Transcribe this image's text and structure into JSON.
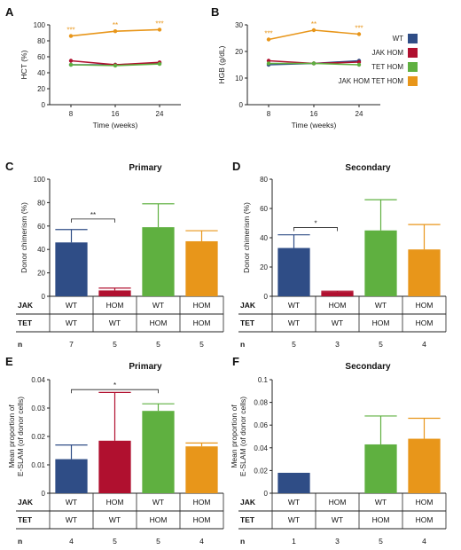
{
  "colors": {
    "wt": "#2f4d86",
    "jak_hom": "#b0102f",
    "tet_hom": "#5fb040",
    "jak_tet_hom": "#e8961a",
    "axis": "#222222"
  },
  "legend": {
    "items": [
      {
        "label": "WT",
        "color_key": "wt"
      },
      {
        "label": "JAK HOM",
        "color_key": "jak_hom"
      },
      {
        "label": "TET HOM",
        "color_key": "tet_hom"
      },
      {
        "label": "JAK HOM TET HOM",
        "color_key": "jak_tet_hom"
      }
    ]
  },
  "chart_data": [
    {
      "panel": "A",
      "type": "line",
      "title": "",
      "xlabel": "Time (weeks)",
      "ylabel": "HCT (%)",
      "x": [
        8,
        16,
        24
      ],
      "xticks": [
        "8",
        "16",
        "24"
      ],
      "ylim": [
        0,
        100
      ],
      "yticks": [
        0,
        20,
        40,
        60,
        80,
        100
      ],
      "series": [
        {
          "name": "WT",
          "color_key": "wt",
          "values": [
            50,
            50,
            52
          ]
        },
        {
          "name": "JAK HOM",
          "color_key": "jak_hom",
          "values": [
            55,
            50,
            53
          ]
        },
        {
          "name": "TET HOM",
          "color_key": "tet_hom",
          "values": [
            50,
            49,
            51
          ]
        },
        {
          "name": "JAK HOM TET HOM",
          "color_key": "jak_tet_hom",
          "values": [
            86,
            92,
            94
          ]
        }
      ],
      "annotations": [
        {
          "x": 8,
          "y": 86,
          "text": "***"
        },
        {
          "x": 16,
          "y": 92,
          "text": "**"
        },
        {
          "x": 24,
          "y": 94,
          "text": "***"
        }
      ]
    },
    {
      "panel": "B",
      "type": "line",
      "title": "",
      "xlabel": "Time (weeks)",
      "ylabel": "HGB (g/dL)",
      "x": [
        8,
        16,
        24
      ],
      "xticks": [
        "8",
        "16",
        "24"
      ],
      "ylim": [
        0,
        30
      ],
      "yticks": [
        0,
        10,
        20,
        30
      ],
      "series": [
        {
          "name": "WT",
          "color_key": "wt",
          "values": [
            15,
            15.5,
            16.5
          ]
        },
        {
          "name": "JAK HOM",
          "color_key": "jak_hom",
          "values": [
            16.5,
            15.5,
            16
          ]
        },
        {
          "name": "TET HOM",
          "color_key": "tet_hom",
          "values": [
            15.5,
            15.5,
            15
          ]
        },
        {
          "name": "JAK HOM TET HOM",
          "color_key": "jak_tet_hom",
          "values": [
            24.5,
            28,
            26.5
          ]
        }
      ],
      "annotations": [
        {
          "x": 8,
          "y": 24.5,
          "text": "***"
        },
        {
          "x": 16,
          "y": 28,
          "text": "**"
        },
        {
          "x": 24,
          "y": 26.5,
          "text": "***"
        }
      ]
    },
    {
      "panel": "C",
      "type": "bar",
      "title": "Primary",
      "xlabel": "",
      "ylabel": "Donor chimerism (%)",
      "ylim": [
        0,
        100
      ],
      "yticks": [
        0,
        20,
        40,
        60,
        80,
        100
      ],
      "bars": [
        {
          "color_key": "wt",
          "value": 46,
          "err": 11
        },
        {
          "color_key": "jak_hom",
          "value": 5,
          "err": 2
        },
        {
          "color_key": "tet_hom",
          "value": 59,
          "err": 20
        },
        {
          "color_key": "jak_tet_hom",
          "value": 47,
          "err": 9
        }
      ],
      "bracket": {
        "from": 0,
        "to": 1,
        "y": 66,
        "text": "**"
      },
      "table": {
        "jak": [
          "WT",
          "HOM",
          "WT",
          "HOM"
        ],
        "tet": [
          "WT",
          "WT",
          "HOM",
          "HOM"
        ],
        "n": [
          "7",
          "5",
          "5",
          "5"
        ]
      }
    },
    {
      "panel": "D",
      "type": "bar",
      "title": "Secondary",
      "xlabel": "",
      "ylabel": "Donor chimerism (%)",
      "ylim": [
        0,
        80
      ],
      "yticks": [
        0,
        20,
        40,
        60,
        80
      ],
      "bars": [
        {
          "color_key": "wt",
          "value": 33,
          "err": 9
        },
        {
          "color_key": "jak_hom",
          "value": 3,
          "err": 0.5
        },
        {
          "color_key": "tet_hom",
          "value": 45,
          "err": 21
        },
        {
          "color_key": "jak_tet_hom",
          "value": 32,
          "err": 17
        }
      ],
      "bracket": {
        "from": 0,
        "to": 1,
        "y": 47,
        "text": "*"
      },
      "table": {
        "jak": [
          "WT",
          "HOM",
          "WT",
          "HOM"
        ],
        "tet": [
          "WT",
          "WT",
          "HOM",
          "HOM"
        ],
        "n": [
          "5",
          "3",
          "5",
          "4"
        ]
      }
    },
    {
      "panel": "E",
      "type": "bar",
      "title": "Primary",
      "xlabel": "",
      "ylabel": "Mean proportion of E-SLAM (of donor cells)",
      "ylim": [
        0,
        0.04
      ],
      "yticks": [
        0,
        0.01,
        0.02,
        0.03,
        0.04
      ],
      "bars": [
        {
          "color_key": "wt",
          "value": 0.012,
          "err": 0.005
        },
        {
          "color_key": "jak_hom",
          "value": 0.0185,
          "err": 0.017
        },
        {
          "color_key": "tet_hom",
          "value": 0.029,
          "err": 0.0025
        },
        {
          "color_key": "jak_tet_hom",
          "value": 0.0165,
          "err": 0.0012
        }
      ],
      "bracket": {
        "from": 0,
        "to": 2,
        "y": 0.0365,
        "text": "*"
      },
      "table": {
        "jak": [
          "WT",
          "HOM",
          "WT",
          "HOM"
        ],
        "tet": [
          "WT",
          "WT",
          "HOM",
          "HOM"
        ],
        "n": [
          "4",
          "5",
          "5",
          "4"
        ]
      }
    },
    {
      "panel": "F",
      "type": "bar",
      "title": "Secondary",
      "xlabel": "",
      "ylabel": "Mean proportion of E-SLAM (of donor cells)",
      "ylim": [
        0,
        0.1
      ],
      "yticks": [
        0,
        0.02,
        0.04,
        0.06,
        0.08,
        0.1
      ],
      "bars": [
        {
          "color_key": "wt",
          "value": 0.018,
          "err": 0
        },
        {
          "color_key": "jak_hom",
          "value": 0,
          "err": 0
        },
        {
          "color_key": "tet_hom",
          "value": 0.043,
          "err": 0.025
        },
        {
          "color_key": "jak_tet_hom",
          "value": 0.048,
          "err": 0.018
        }
      ],
      "bracket": null,
      "table": {
        "jak": [
          "WT",
          "HOM",
          "WT",
          "HOM"
        ],
        "tet": [
          "WT",
          "WT",
          "HOM",
          "HOM"
        ],
        "n": [
          "1",
          "3",
          "5",
          "4"
        ]
      }
    }
  ],
  "table_labels": {
    "jak": "JAK",
    "tet": "TET",
    "n": "n"
  }
}
